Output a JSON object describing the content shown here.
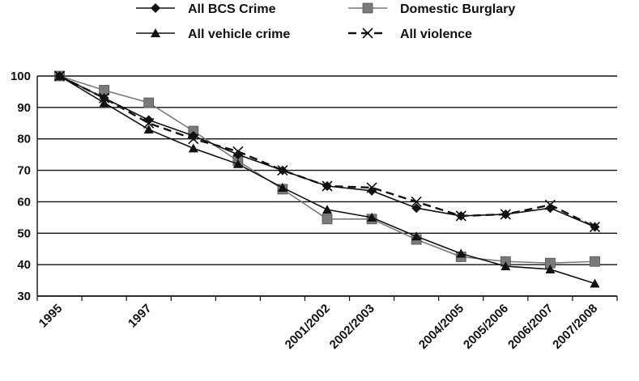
{
  "chart_data": {
    "type": "line",
    "title": "",
    "xlabel": "",
    "ylabel": "",
    "categories": [
      "1995",
      "",
      "1997",
      "",
      "",
      "",
      "2001/2002",
      "2002/2003",
      "",
      "2004/2005",
      "2005/2006",
      "2006/2007",
      "2007/2008"
    ],
    "ylim": [
      30,
      100
    ],
    "yticks": [
      30,
      40,
      50,
      60,
      70,
      80,
      90,
      100
    ],
    "grid": true,
    "legend_position": "top",
    "series": [
      {
        "name": "All BCS Crime",
        "marker": "diamond",
        "color": "#111111",
        "dash": false,
        "values": [
          100,
          93,
          86,
          81,
          75,
          70,
          65,
          63.5,
          58,
          55.5,
          56,
          58,
          52
        ]
      },
      {
        "name": "Domestic Burglary",
        "marker": "square",
        "color": "#7a7a7a",
        "dash": false,
        "values": [
          100,
          95.5,
          91.5,
          82.5,
          73,
          64,
          54.5,
          54.5,
          48,
          42.5,
          41,
          40.5,
          41
        ]
      },
      {
        "name": "All vehicle crime",
        "marker": "triangle",
        "color": "#111111",
        "dash": false,
        "values": [
          100,
          91.5,
          83,
          77,
          72,
          64.5,
          57.5,
          55,
          49,
          43.5,
          39.5,
          38.5,
          34
        ]
      },
      {
        "name": "All violence",
        "marker": "x",
        "color": "#111111",
        "dash": true,
        "values": [
          100,
          93,
          85,
          80,
          76,
          70,
          65,
          64.5,
          60,
          55.5,
          56,
          59,
          52
        ]
      }
    ]
  }
}
